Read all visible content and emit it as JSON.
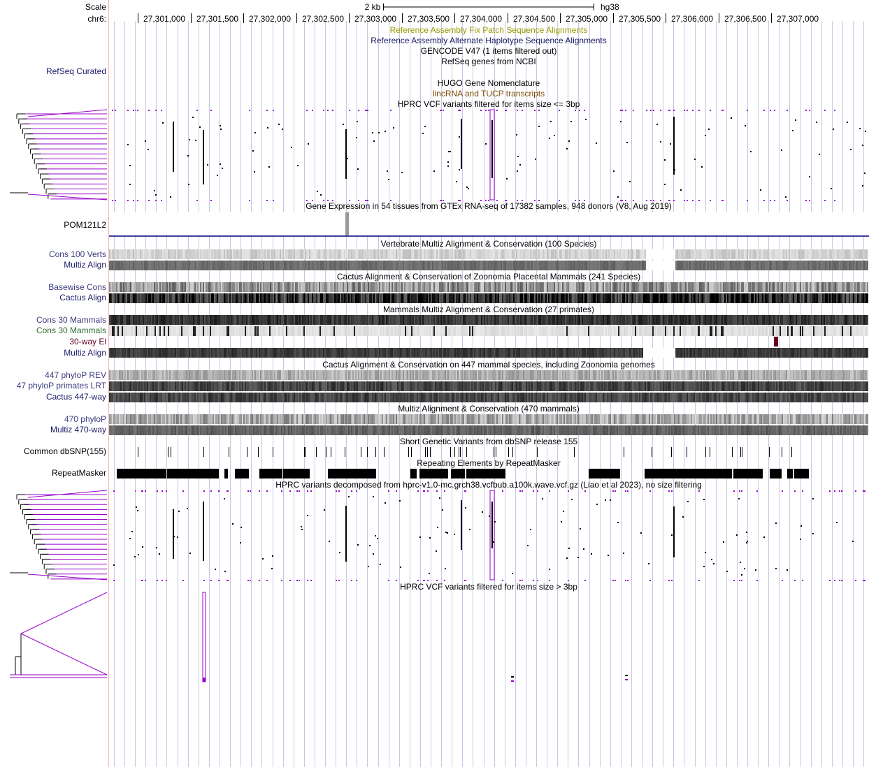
{
  "browser": {
    "scale_label": "Scale",
    "scale_value": "2 kb",
    "assembly": "hg38",
    "chrom_label": "chr6:",
    "ticks": [
      "27,301,000",
      "27,301,500",
      "27,302,000",
      "27,302,500",
      "27,303,000",
      "27,303,500",
      "27,304,000",
      "27,304,500",
      "27,305,000",
      "27,305,500",
      "27,306,000",
      "27,306,500",
      "27,307,000"
    ]
  },
  "colors": {
    "purple": "#9900cc",
    "navy": "#1a1a66",
    "olive": "#999900",
    "brown": "#7a4a00",
    "green": "#2e6b2e",
    "darkred": "#660022",
    "grid": "#c8c8e6",
    "leftline": "#ffb0b0"
  },
  "titles": {
    "fix_patch": "Reference Assembly Fix Patch Sequence Alignments",
    "alt_haplo": "Reference Assembly Alternate Haplotype Sequence Alignments",
    "gencode": "GENCODE V47 (1 items filtered out)",
    "refseq": "RefSeq genes from NCBI",
    "hugo": "HUGO Gene Nomenclature",
    "lincrna": "lincRNA and TUCP transcripts",
    "hprc_small": "HPRC VCF variants filtered for items size <= 3bp",
    "gtex": "Gene Expression in 54 tissues from GTEx RNA-seq of 17382 samples, 948 donors (V8, Aug 2019)",
    "vert_multiz": "Vertebrate Multiz Alignment & Conservation (100 Species)",
    "cactus241": "Cactus Alignment & Conservation of Zoonomia Placental Mammals (241 Species)",
    "mammals27": "Mammals Multiz Alignment & Conservation (27 primates)",
    "cactus447": "Cactus Alignment & Conservation on 447 mammal species, including Zoonomia genomes",
    "multiz470": "Multiz Alignment & Conservation (470 mammals)",
    "dbsnp": "Short Genetic Variants from dbSNP release 155",
    "repeatmasker": "Repeating Elements by RepeatMasker",
    "hprc_all": "HPRC variants decomposed from hprc-v1.0-mc.grch38.vcfbub.a100k.wave.vcf.gz (Liao et al 2023), no size filtering",
    "hprc_large": "HPRC VCF variants filtered for items size > 3bp"
  },
  "labels": {
    "refseq_curated": "RefSeq Curated",
    "pom121l2": "POM121L2",
    "cons100": "Cons 100 Verts",
    "multiz_align": "Multiz Align",
    "basewise": "Basewise Cons",
    "cactus_align": "Cactus Align",
    "cons30_a": "Cons 30 Mammals",
    "cons30_b": "Cons 30 Mammals",
    "el30": "30-way El",
    "multiz_align_2": "Multiz Align",
    "phylop447": "447 phyloP REV",
    "phylop47": "47 phyloP primates LRT",
    "cactus447": "Cactus 447-way",
    "phylop470": "470 phyloP",
    "multiz470": "Multiz 470-way",
    "dbsnp": "Common dbSNP(155)",
    "repeatmasker": "RepeatMasker"
  },
  "features": {
    "dbsnp_positions": [
      27301000,
      27301284,
      27301310,
      27301620,
      27301860,
      27302030,
      27302140,
      27302280,
      27302575,
      27302585,
      27302690,
      27302780,
      27302830,
      27302960,
      27303110,
      27303170,
      27303250,
      27303330,
      27303560,
      27303590,
      27303720,
      27303740,
      27303770,
      27303960,
      27304000,
      27304040,
      27304050,
      27304110,
      27304370,
      27304390,
      27304510,
      27304550,
      27304780,
      27305130,
      27305600,
      27305870,
      27306050,
      27306200,
      27306380,
      27306420,
      27306630,
      27306710,
      27306720,
      27306980,
      27307100,
      27307190
    ],
    "repeat_blocks": [
      [
        27300800,
        27301270
      ],
      [
        27301280,
        27301770
      ],
      [
        27301820,
        27301850
      ],
      [
        27301920,
        27302050
      ],
      [
        27302150,
        27302370
      ],
      [
        27302380,
        27302630
      ],
      [
        27302800,
        27303260
      ],
      [
        27303580,
        27303640
      ],
      [
        27303670,
        27303940
      ],
      [
        27303970,
        27304100
      ],
      [
        27304110,
        27304480
      ],
      [
        27305270,
        27305570
      ],
      [
        27305800,
        27306630
      ],
      [
        27306640,
        27306920
      ],
      [
        27306990,
        27307100
      ],
      [
        27307150,
        27307200
      ],
      [
        27307220,
        27307360
      ]
    ],
    "gtex_bar_position": 27302970,
    "el30_position": 27307028
  }
}
